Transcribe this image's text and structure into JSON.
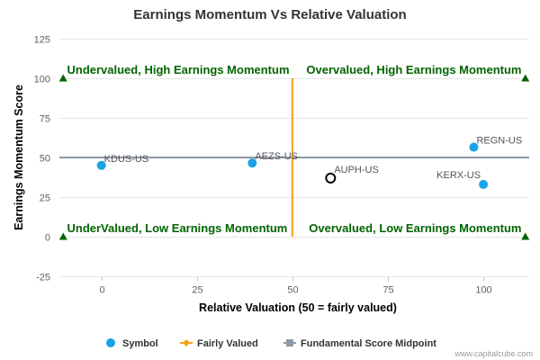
{
  "chart_data": {
    "type": "scatter",
    "title": "Earnings Momentum Vs Relative Valuation",
    "xlabel": "Relative Valuation (50 = fairly valued)",
    "ylabel": "Earnings Momentum Score",
    "xlim": [
      -11,
      112
    ],
    "ylim": [
      -25,
      125
    ],
    "xticks": [
      0,
      25,
      50,
      75,
      100
    ],
    "yticks": [
      125,
      100,
      75,
      50,
      25,
      0,
      -25
    ],
    "grid": "horizontal",
    "legend_position": "bottom",
    "colors": {
      "symbol": "#1aa1e6",
      "fairly_valued": "#f7a11a",
      "midpoint": "#8d99a6",
      "quadrant_text": "#006400",
      "highlight_stroke": "#000000"
    },
    "series": [
      {
        "name": "Symbol",
        "points": [
          {
            "label": "KDUS-US",
            "x": 0,
            "y": 45
          },
          {
            "label": "AEZS-US",
            "x": 39.5,
            "y": 46.5
          },
          {
            "label": "REGN-US",
            "x": 97.5,
            "y": 56.5
          },
          {
            "label": "KERX-US",
            "x": 100,
            "y": 33
          }
        ]
      },
      {
        "name": "Fairly Valued",
        "points": [
          {
            "x": 50,
            "y": 0
          },
          {
            "x": 50,
            "y": 100
          }
        ]
      },
      {
        "name": "Fundamental Score Midpoint",
        "points": [
          {
            "x": -11,
            "y": 50
          },
          {
            "x": 112,
            "y": 50
          }
        ]
      }
    ],
    "highlight": {
      "label": "AUPH-US",
      "x": 60,
      "y": 37
    },
    "corner_markers": [
      {
        "x": -10,
        "y": 100
      },
      {
        "x": 111,
        "y": 100
      },
      {
        "x": -10,
        "y": 0
      },
      {
        "x": 111,
        "y": 0
      }
    ],
    "annotations": [
      {
        "text": "Undervalued, High Earnings Momentum",
        "x": -9,
        "y": 100,
        "anchor": "start"
      },
      {
        "text": "Overvalued, High Earnings Momentum",
        "x": 110,
        "y": 100,
        "anchor": "end"
      },
      {
        "text": "UnderValued, Low Earnings Momentum",
        "x": -9,
        "y": 0,
        "anchor": "start"
      },
      {
        "text": "Overvalued, Low Earnings Momentum",
        "x": 110,
        "y": 0,
        "anchor": "end"
      }
    ],
    "legend": [
      "Symbol",
      "Fairly Valued",
      "Fundamental Score Midpoint"
    ],
    "credit": "www.capitalcube.com"
  }
}
